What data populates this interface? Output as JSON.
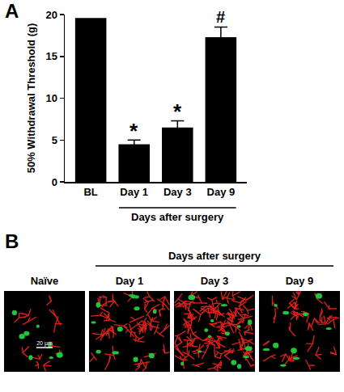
{
  "chart_data": {
    "type": "bar",
    "panel_label": "A",
    "categories": [
      "BL",
      "Day 1",
      "Day 3",
      "Day 9"
    ],
    "values": [
      19.6,
      4.5,
      6.5,
      17.3
    ],
    "errors": [
      null,
      0.5,
      0.8,
      1.2
    ],
    "significance": [
      null,
      "*",
      "*",
      "#"
    ],
    "category_group": {
      "label": "Days after surgery",
      "from": "Day 1",
      "to": "Day 9"
    },
    "color": "#000000",
    "ylabel": "50% Withdrawal Threshold (g)",
    "ylim": [
      0,
      20
    ],
    "yticks": [
      0,
      5,
      10,
      15,
      20
    ],
    "grid": false
  },
  "image_panel": {
    "panel_label": "B",
    "group_label": "Days after surgery",
    "group_from": "Day 1",
    "group_to": "Day 9",
    "panels": [
      "Naïve",
      "Day 1",
      "Day 3",
      "Day 9"
    ],
    "scale_bar": "20 μm"
  }
}
